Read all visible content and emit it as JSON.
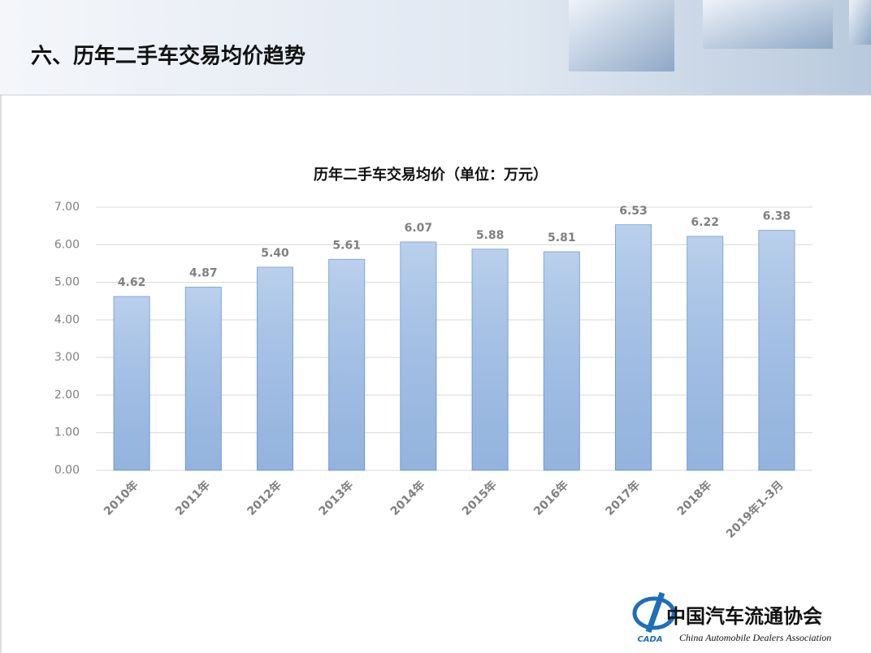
{
  "header": {
    "title": "六、历年二手车交易均价趋势"
  },
  "logo": {
    "abbr": "CADA",
    "name_cn": "中国汽车流通协会",
    "name_en": "China Automobile Dealers Association"
  },
  "chart_data": {
    "type": "bar",
    "title": "历年二手车交易均价（单位：万元）",
    "categories": [
      "2010年",
      "2011年",
      "2012年",
      "2013年",
      "2014年",
      "2015年",
      "2016年",
      "2017年",
      "2018年",
      "2019年1-3月"
    ],
    "values": [
      4.62,
      4.87,
      5.4,
      5.61,
      6.07,
      5.88,
      5.81,
      6.53,
      6.22,
      6.38
    ],
    "value_labels": [
      "4.62",
      "4.87",
      "5.40",
      "5.61",
      "6.07",
      "5.88",
      "5.81",
      "6.53",
      "6.22",
      "6.38"
    ],
    "color": "#a3c0e6",
    "ylim": [
      0,
      7
    ],
    "yticks": [
      {
        "value": 0,
        "label": "0.00"
      },
      {
        "value": 1,
        "label": "1.00"
      },
      {
        "value": 2,
        "label": "2.00"
      },
      {
        "value": 3,
        "label": "3.00"
      },
      {
        "value": 4,
        "label": "4.00"
      },
      {
        "value": 5,
        "label": "5.00"
      },
      {
        "value": 6,
        "label": "6.00"
      },
      {
        "value": 7,
        "label": "7.00"
      }
    ],
    "grid": true
  }
}
